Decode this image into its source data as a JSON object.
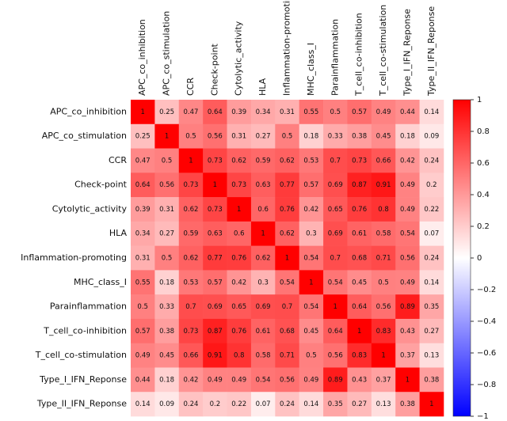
{
  "chart_data": {
    "type": "heatmap",
    "categories": [
      "APC_co_inhibition",
      "APC_co_stimulation",
      "CCR",
      "Check-point",
      "Cytolytic_activity",
      "HLA",
      "Inflammation-promoting",
      "MHC_class_I",
      "Parainflammation",
      "T_cell_co-inhibition",
      "T_cell_co-stimulation",
      "Type_I_IFN_Reponse",
      "Type_II_IFN_Reponse"
    ],
    "values": [
      [
        1,
        0.25,
        0.47,
        0.64,
        0.39,
        0.34,
        0.31,
        0.55,
        0.5,
        0.57,
        0.49,
        0.44,
        0.14
      ],
      [
        0.25,
        1,
        0.5,
        0.56,
        0.31,
        0.27,
        0.5,
        0.18,
        0.33,
        0.38,
        0.45,
        0.18,
        0.09
      ],
      [
        0.47,
        0.5,
        1,
        0.73,
        0.62,
        0.59,
        0.62,
        0.53,
        0.7,
        0.73,
        0.66,
        0.42,
        0.24
      ],
      [
        0.64,
        0.56,
        0.73,
        1,
        0.73,
        0.63,
        0.77,
        0.57,
        0.69,
        0.87,
        0.91,
        0.49,
        0.2
      ],
      [
        0.39,
        0.31,
        0.62,
        0.73,
        1,
        0.6,
        0.76,
        0.42,
        0.65,
        0.76,
        0.8,
        0.49,
        0.22
      ],
      [
        0.34,
        0.27,
        0.59,
        0.63,
        0.6,
        1,
        0.62,
        0.3,
        0.69,
        0.61,
        0.58,
        0.54,
        0.07
      ],
      [
        0.31,
        0.5,
        0.62,
        0.77,
        0.76,
        0.62,
        1,
        0.54,
        0.7,
        0.68,
        0.71,
        0.56,
        0.24
      ],
      [
        0.55,
        0.18,
        0.53,
        0.57,
        0.42,
        0.3,
        0.54,
        1,
        0.54,
        0.45,
        0.5,
        0.49,
        0.14
      ],
      [
        0.5,
        0.33,
        0.7,
        0.69,
        0.65,
        0.69,
        0.7,
        0.54,
        1,
        0.64,
        0.56,
        0.89,
        0.35
      ],
      [
        0.57,
        0.38,
        0.73,
        0.87,
        0.76,
        0.61,
        0.68,
        0.45,
        0.64,
        1,
        0.83,
        0.43,
        0.27
      ],
      [
        0.49,
        0.45,
        0.66,
        0.91,
        0.8,
        0.58,
        0.71,
        0.5,
        0.56,
        0.83,
        1,
        0.37,
        0.13
      ],
      [
        0.44,
        0.18,
        0.42,
        0.49,
        0.49,
        0.54,
        0.56,
        0.49,
        0.89,
        0.43,
        0.37,
        1,
        0.38
      ],
      [
        0.14,
        0.09,
        0.24,
        0.2,
        0.22,
        0.07,
        0.24,
        0.14,
        0.35,
        0.27,
        0.13,
        0.38,
        1
      ]
    ],
    "zlim": [
      -1,
      1
    ],
    "colormap": [
      "#0000ff",
      "#ffffff",
      "#ff0000"
    ],
    "zticks": [
      1,
      0.8,
      0.6,
      0.4,
      0.2,
      0,
      {
        "value": -0.2,
        "label": "−0.2"
      },
      {
        "value": -0.4,
        "label": "−0.4"
      },
      {
        "value": -0.6,
        "label": "−0.6"
      },
      {
        "value": -0.8,
        "label": "−0.8"
      },
      {
        "value": -1,
        "label": "−1"
      }
    ]
  }
}
